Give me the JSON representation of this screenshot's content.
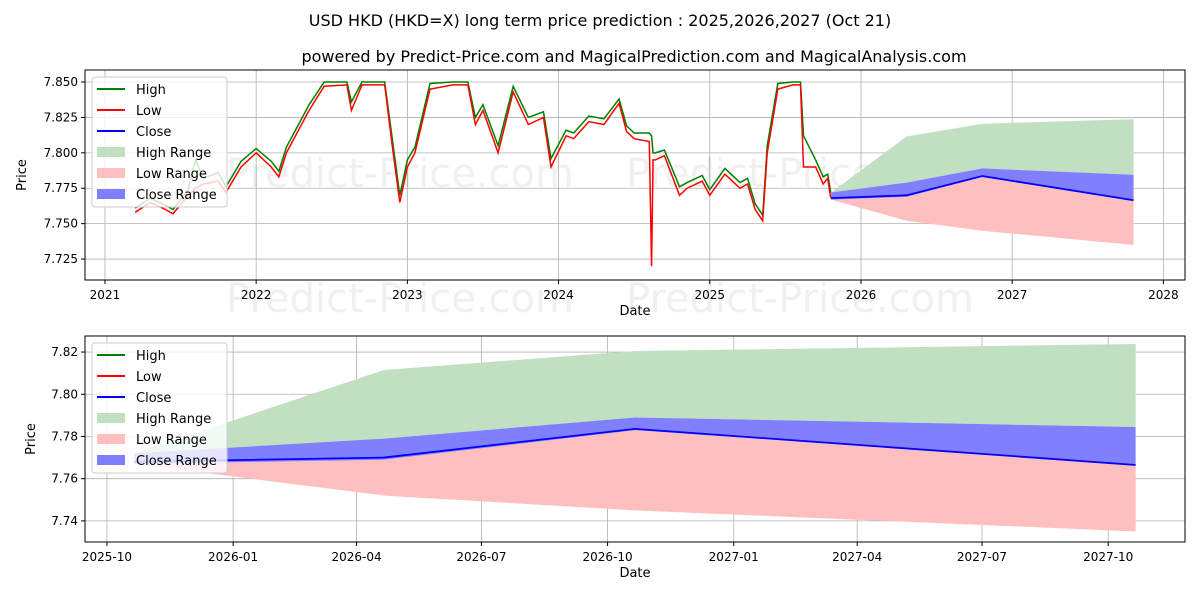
{
  "title": "USD HKD (HKD=X) long term price prediction : 2025,2026,2027 (Oct 21)",
  "subtitle": "powered by Predict-Price.com and MagicalPrediction.com and MagicalAnalysis.com",
  "watermark": "Predict-Price.com",
  "colors": {
    "high": "#008000",
    "low": "#ff0000",
    "close": "#0000ff",
    "high_range": "#c1e0c1",
    "low_range": "#ffbfbf",
    "close_range": "#8080ff"
  },
  "chart_data": [
    {
      "type": "line",
      "xlabel": "Date",
      "ylabel": "Price",
      "xlim": [
        2020.868,
        2028.143
      ],
      "ylim": [
        7.7102,
        7.8585
      ],
      "xticks": [
        {
          "v": 2021,
          "label": "2021"
        },
        {
          "v": 2022,
          "label": "2022"
        },
        {
          "v": 2023,
          "label": "2023"
        },
        {
          "v": 2024,
          "label": "2024"
        },
        {
          "v": 2025,
          "label": "2025"
        },
        {
          "v": 2026,
          "label": "2026"
        },
        {
          "v": 2027,
          "label": "2027"
        },
        {
          "v": 2028,
          "label": "2028"
        }
      ],
      "yticks": [
        {
          "v": 7.725,
          "label": "7.725"
        },
        {
          "v": 7.75,
          "label": "7.750"
        },
        {
          "v": 7.775,
          "label": "7.775"
        },
        {
          "v": 7.8,
          "label": "7.800"
        },
        {
          "v": 7.825,
          "label": "7.825"
        },
        {
          "v": 7.85,
          "label": "7.850"
        }
      ],
      "grid": true,
      "legend": {
        "placement": "upper-left",
        "entries": [
          "High",
          "Low",
          "Close",
          "High Range",
          "Low Range",
          "Close Range"
        ]
      },
      "history": {
        "t": [
          2021.2,
          2021.3,
          2021.4,
          2021.45,
          2021.55,
          2021.6,
          2021.65,
          2021.75,
          2021.8,
          2021.9,
          2022.0,
          2022.1,
          2022.15,
          2022.2,
          2022.3,
          2022.35,
          2022.45,
          2022.6,
          2022.63,
          2022.7,
          2022.85,
          2022.9,
          2022.95,
          2023.0,
          2023.05,
          2023.15,
          2023.3,
          2023.4,
          2023.45,
          2023.5,
          2023.6,
          2023.7,
          2023.8,
          2023.9,
          2023.95,
          2024.05,
          2024.1,
          2024.2,
          2024.3,
          2024.4,
          2024.45,
          2024.5,
          2024.6,
          2024.615,
          2024.625,
          2024.64,
          2024.7,
          2024.8,
          2024.85,
          2024.95,
          2025.0,
          2025.1,
          2025.2,
          2025.25,
          2025.3,
          2025.35,
          2025.38,
          2025.45,
          2025.55,
          2025.6,
          2025.62,
          2025.7,
          2025.75,
          2025.78,
          2025.8
        ],
        "high": [
          7.761,
          7.768,
          7.763,
          7.76,
          7.774,
          7.795,
          7.782,
          7.786,
          7.776,
          7.794,
          7.803,
          7.794,
          7.787,
          7.804,
          7.824,
          7.834,
          7.85,
          7.85,
          7.836,
          7.85,
          7.85,
          7.81,
          7.77,
          7.795,
          7.804,
          7.849,
          7.85,
          7.85,
          7.825,
          7.834,
          7.805,
          7.847,
          7.825,
          7.829,
          7.796,
          7.816,
          7.814,
          7.826,
          7.824,
          7.838,
          7.819,
          7.814,
          7.814,
          7.812,
          7.8,
          7.8,
          7.802,
          7.776,
          7.779,
          7.784,
          7.774,
          7.789,
          7.779,
          7.782,
          7.764,
          7.756,
          7.805,
          7.849,
          7.85,
          7.85,
          7.812,
          7.795,
          7.783,
          7.785,
          7.772
        ],
        "low": [
          7.758,
          7.765,
          7.76,
          7.757,
          7.77,
          7.775,
          7.778,
          7.78,
          7.772,
          7.79,
          7.8,
          7.79,
          7.783,
          7.8,
          7.82,
          7.83,
          7.847,
          7.848,
          7.83,
          7.848,
          7.848,
          7.805,
          7.765,
          7.79,
          7.8,
          7.845,
          7.848,
          7.848,
          7.82,
          7.83,
          7.8,
          7.843,
          7.82,
          7.825,
          7.79,
          7.812,
          7.81,
          7.822,
          7.82,
          7.835,
          7.815,
          7.81,
          7.808,
          7.72,
          7.795,
          7.795,
          7.798,
          7.77,
          7.775,
          7.78,
          7.77,
          7.785,
          7.775,
          7.778,
          7.76,
          7.752,
          7.8,
          7.845,
          7.848,
          7.848,
          7.79,
          7.79,
          7.778,
          7.782,
          7.768
        ]
      },
      "forecast_ref": "shared"
    },
    {
      "type": "line",
      "xlabel": "Date",
      "ylabel": "Price",
      "xlim": [
        "2025-09-15",
        "2027-11-26"
      ],
      "ylim": [
        7.73,
        7.8276
      ],
      "xticks": [
        {
          "v": "2025-10-01",
          "label": "2025-10"
        },
        {
          "v": "2026-01-01",
          "label": "2026-01"
        },
        {
          "v": "2026-04-01",
          "label": "2026-04"
        },
        {
          "v": "2026-07-01",
          "label": "2026-07"
        },
        {
          "v": "2026-10-01",
          "label": "2026-10"
        },
        {
          "v": "2027-01-01",
          "label": "2027-01"
        },
        {
          "v": "2027-04-01",
          "label": "2027-04"
        },
        {
          "v": "2027-07-01",
          "label": "2027-07"
        },
        {
          "v": "2027-10-01",
          "label": "2027-10"
        }
      ],
      "yticks": [
        {
          "v": 7.74,
          "label": "7.74"
        },
        {
          "v": 7.76,
          "label": "7.76"
        },
        {
          "v": 7.78,
          "label": "7.78"
        },
        {
          "v": 7.8,
          "label": "7.80"
        },
        {
          "v": 7.82,
          "label": "7.82"
        }
      ],
      "grid": true,
      "legend": {
        "placement": "upper-left",
        "entries": [
          "High",
          "Low",
          "Close",
          "High Range",
          "Low Range",
          "Close Range"
        ]
      },
      "forecast_ref": "shared"
    }
  ],
  "forecast": {
    "dates": [
      "2025-10-21",
      "2026-04-21",
      "2026-10-21",
      "2027-10-21"
    ],
    "close": [
      7.768,
      7.77,
      7.7836,
      7.7665
    ],
    "high_range": {
      "upper": [
        7.772,
        7.8115,
        7.8205,
        7.8238
      ],
      "lower": [
        7.768,
        7.779,
        7.789,
        7.7845
      ]
    },
    "close_range": {
      "upper": [
        7.772,
        7.779,
        7.789,
        7.7845
      ],
      "lower": [
        7.767,
        7.769,
        7.783,
        7.7665
      ]
    },
    "low_range": {
      "upper": [
        7.768,
        7.77,
        7.7836,
        7.7665
      ],
      "lower": [
        7.767,
        7.752,
        7.745,
        7.735
      ]
    }
  }
}
